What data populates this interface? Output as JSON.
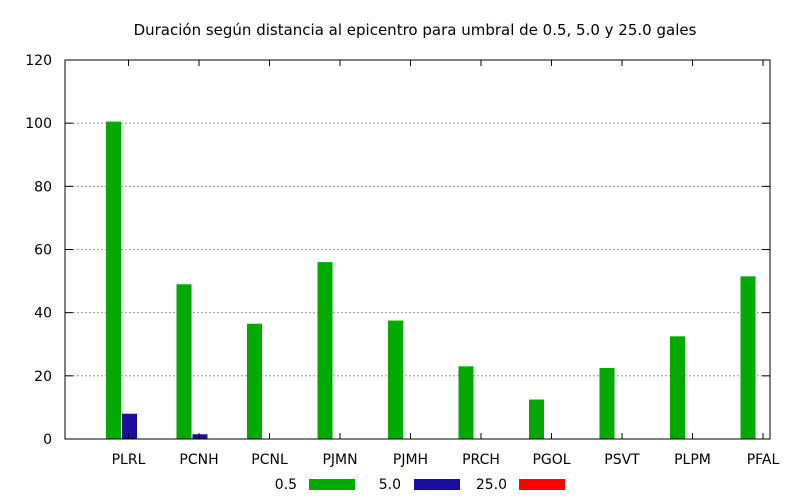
{
  "chart_data": {
    "type": "bar",
    "title": "Duración según distancia al epicentro para umbral de 0.5, 5.0 y 25.0 gales",
    "xlabel": "",
    "ylabel": "",
    "categories": [
      "PLRL",
      "PCNH",
      "PCNL",
      "PJMN",
      "PJMH",
      "PRCH",
      "PGOL",
      "PSVT",
      "PLPM",
      "PFAL"
    ],
    "ylim": [
      0,
      120
    ],
    "yticks": [
      0,
      20,
      40,
      60,
      80,
      100,
      120
    ],
    "grid": true,
    "legend_position": "bottom",
    "series": [
      {
        "name": "0.5",
        "color": "#00aa00",
        "values": [
          100.5,
          49,
          36.5,
          56,
          37.5,
          23,
          12.5,
          22.5,
          32.5,
          51.5
        ]
      },
      {
        "name": "5.0",
        "color": "#1a0f9e",
        "values": [
          8,
          1.5,
          0,
          0,
          0,
          0,
          0,
          0,
          0,
          0
        ]
      },
      {
        "name": "25.0",
        "color": "#ff0000",
        "values": [
          0,
          0,
          0,
          0,
          0,
          0,
          0,
          0,
          0,
          0
        ]
      }
    ]
  }
}
